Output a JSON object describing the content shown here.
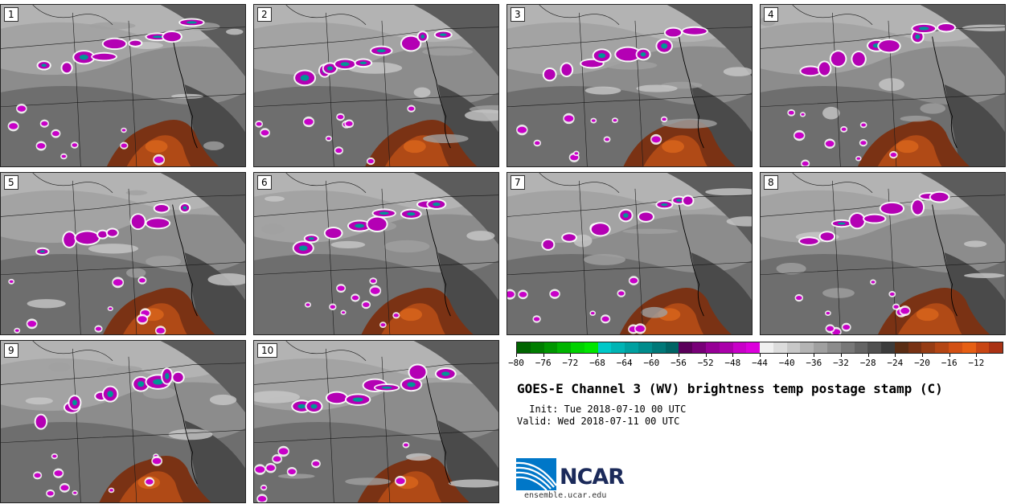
{
  "panels": [
    {
      "label": "1"
    },
    {
      "label": "2"
    },
    {
      "label": "3"
    },
    {
      "label": "4"
    },
    {
      "label": "5"
    },
    {
      "label": "6"
    },
    {
      "label": "7"
    },
    {
      "label": "8"
    },
    {
      "label": "9"
    },
    {
      "label": "10"
    }
  ],
  "colorbar": {
    "colors": [
      "#006400",
      "#007d00",
      "#009600",
      "#00b400",
      "#00d200",
      "#00e600",
      "#00c8c8",
      "#00b4b4",
      "#00a0a0",
      "#008c8c",
      "#007878",
      "#006464",
      "#5a005a",
      "#780078",
      "#960096",
      "#aa00aa",
      "#c800c8",
      "#dc00dc",
      "#f0f0f0",
      "#dcdcdc",
      "#c8c8c8",
      "#b4b4b4",
      "#a0a0a0",
      "#8c8c8c",
      "#787878",
      "#646464",
      "#505050",
      "#3c3c3c",
      "#5a2d14",
      "#783214",
      "#963c14",
      "#b44614",
      "#d25014",
      "#e65f14",
      "#c84614",
      "#aa3214"
    ],
    "tick_labels": [
      "−80",
      "−76",
      "−72",
      "−68",
      "−64",
      "−60",
      "−56",
      "−52",
      "−48",
      "−44",
      "−40",
      "−36",
      "−32",
      "−28",
      "−24",
      "−20",
      "−16",
      "−12"
    ]
  },
  "title": "GOES-E Channel 3 (WV) brightness temp postage stamp (C)",
  "init": " Init: Tue 2018-07-10 00 UTC",
  "valid": "Valid: Wed 2018-07-11 00 UTC",
  "logo": {
    "text": "NCAR",
    "url": "ensemble.ucar.edu",
    "color": "#0077c8"
  }
}
